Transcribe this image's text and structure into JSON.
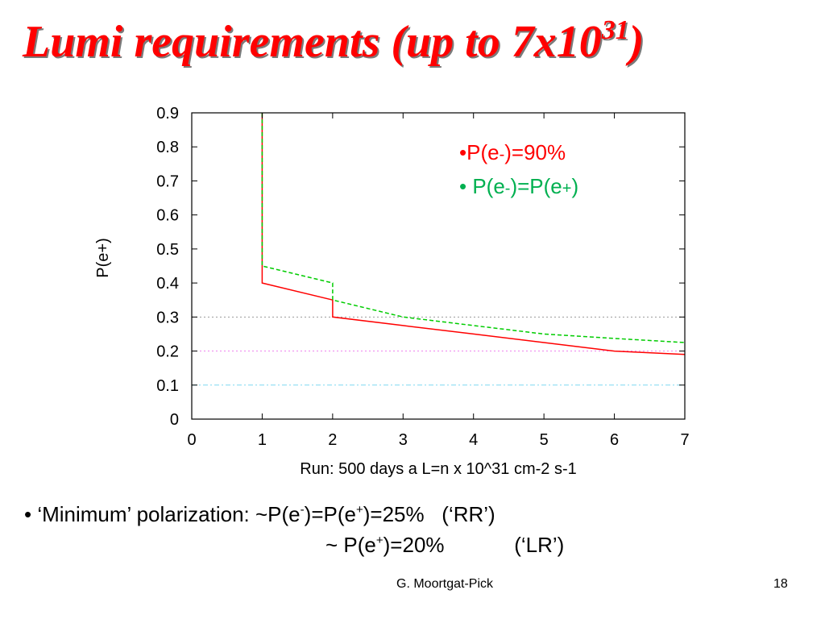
{
  "slide": {
    "title_main": "Lumi requirements  (up to 7x10",
    "title_exponent": "31",
    "title_close": ")",
    "bullet1_prefix": "• ‘Minimum’ polarization: ~P(e",
    "bullet1_sup1": "-",
    "bullet1_mid": ")=P(e",
    "bullet1_sup2": "+",
    "bullet1_suffix": ")=25%   (‘RR’)",
    "bullet2_prefix": "~ P(e",
    "bullet2_sup": "+",
    "bullet2_suffix": ")=20%            (‘LR’)",
    "footer_author": "G. Moortgat-Pick",
    "footer_page": "18"
  },
  "chart_data": {
    "type": "line",
    "xlabel": "Run: 500 days a L=n x 10^31 cm-2 s-1",
    "ylabel": "P(e+)",
    "xlim": [
      0,
      7
    ],
    "ylim": [
      0,
      0.9
    ],
    "x_ticks": [
      "0",
      "1",
      "2",
      "3",
      "4",
      "5",
      "6",
      "7"
    ],
    "y_ticks": [
      "0",
      "0.1",
      "0.2",
      "0.3",
      "0.4",
      "0.5",
      "0.6",
      "0.7",
      "0.8",
      "0.9"
    ],
    "grid": false,
    "legend_position": "top-right",
    "series": [
      {
        "name": "P(e-)=90%",
        "color": "#ff0000",
        "style": "solid",
        "points": [
          [
            1,
            0.9
          ],
          [
            1,
            0.4
          ],
          [
            2,
            0.35
          ],
          [
            2,
            0.3
          ],
          [
            3,
            0.275
          ],
          [
            4,
            0.25
          ],
          [
            5,
            0.225
          ],
          [
            6,
            0.2
          ],
          [
            7,
            0.19
          ]
        ]
      },
      {
        "name": "P(e-)=P(e+)",
        "color": "#00cc00",
        "style": "dashed",
        "points": [
          [
            1,
            0.9
          ],
          [
            1,
            0.45
          ],
          [
            2,
            0.4
          ],
          [
            2,
            0.35
          ],
          [
            3,
            0.3
          ],
          [
            4,
            0.275
          ],
          [
            5,
            0.25
          ],
          [
            6,
            0.237
          ],
          [
            7,
            0.225
          ]
        ]
      }
    ],
    "reference_lines": [
      {
        "y": 0.3,
        "color": "#9a9a9a",
        "style": "dotted"
      },
      {
        "y": 0.2,
        "color": "#ee82ee",
        "style": "dotted"
      },
      {
        "y": 0.1,
        "color": "#7fd8f0",
        "style": "dashdot"
      }
    ],
    "legend": [
      {
        "bullet": "•",
        "text_a": "P(e",
        "sub_a": "-",
        "text_b": ")=90%",
        "sub_b": "",
        "text_c": "",
        "color": "#ff0000"
      },
      {
        "bullet": "• ",
        "text_a": "P(e",
        "sub_a": "-",
        "text_b": ")=P(e",
        "sub_b": "+",
        "text_c": ")",
        "color": "#00b050"
      }
    ]
  }
}
